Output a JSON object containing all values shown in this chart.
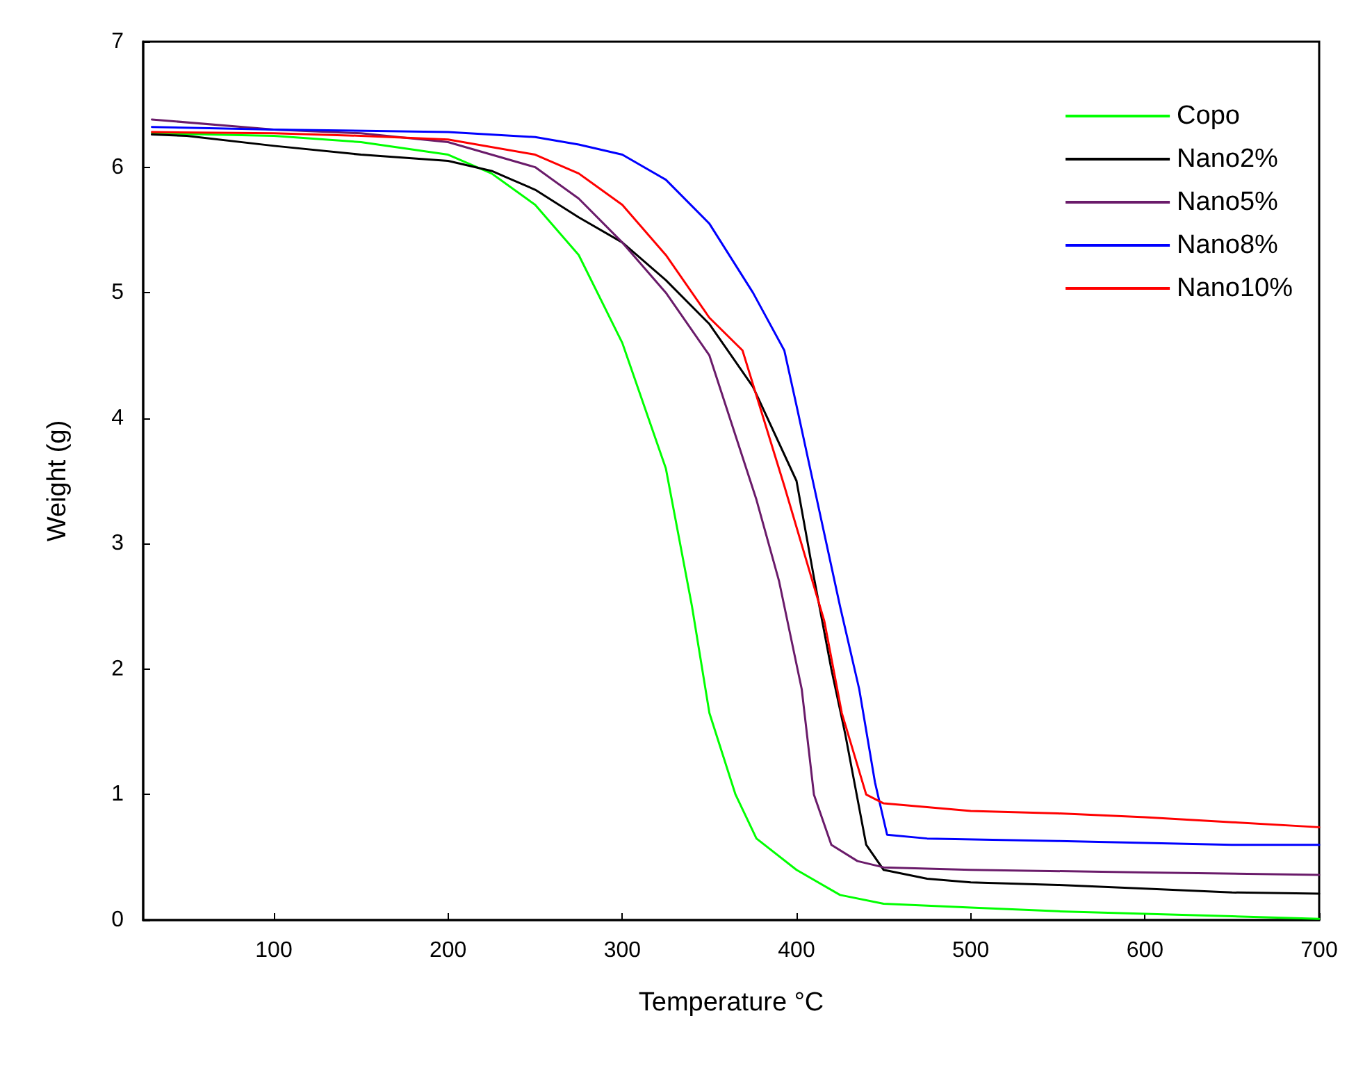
{
  "chart_data": {
    "type": "line",
    "xlabel": "Temperature °C",
    "ylabel": "Weight (g)",
    "xlim": [
      25,
      700
    ],
    "xticks": [
      100,
      200,
      300,
      400,
      500,
      600,
      700
    ],
    "ylim": [
      0,
      7
    ],
    "yticks": [
      0,
      1,
      2,
      3,
      4,
      5,
      6,
      7
    ],
    "grid": false,
    "legend": "top right",
    "marker": "none",
    "line_style": "solid",
    "series": [
      {
        "name": "Copo",
        "color": "#00ff00",
        "x": [
          30,
          100,
          150,
          200,
          225,
          250,
          275,
          300,
          325,
          340,
          350,
          365,
          377,
          400,
          425,
          450,
          500,
          550,
          600,
          650,
          700
        ],
        "values": [
          6.27,
          6.25,
          6.2,
          6.1,
          5.95,
          5.7,
          5.3,
          4.6,
          3.6,
          2.5,
          1.65,
          1.0,
          0.65,
          0.4,
          0.2,
          0.13,
          0.1,
          0.07,
          0.05,
          0.03,
          0.01
        ]
      },
      {
        "name": "Nano2%",
        "color": "#000000",
        "x": [
          30,
          50,
          100,
          150,
          200,
          225,
          250,
          275,
          300,
          325,
          350,
          375,
          400,
          410,
          420,
          428,
          440,
          450,
          475,
          500,
          550,
          600,
          650,
          700
        ],
        "values": [
          6.26,
          6.25,
          6.17,
          6.1,
          6.05,
          5.97,
          5.82,
          5.6,
          5.4,
          5.1,
          4.75,
          4.25,
          3.5,
          2.73,
          2.0,
          1.48,
          0.6,
          0.4,
          0.33,
          0.3,
          0.28,
          0.25,
          0.22,
          0.21
        ]
      },
      {
        "name": "Nano5%",
        "color": "#6a1b6a",
        "x": [
          30,
          100,
          150,
          200,
          250,
          275,
          300,
          325,
          350,
          377,
          390,
          403,
          410,
          420,
          435,
          450,
          500,
          600,
          700
        ],
        "values": [
          6.38,
          6.3,
          6.27,
          6.2,
          6.0,
          5.75,
          5.4,
          5.0,
          4.5,
          3.35,
          2.7,
          1.84,
          1.0,
          0.6,
          0.47,
          0.42,
          0.4,
          0.38,
          0.36
        ]
      },
      {
        "name": "Nano8%",
        "color": "#0000ff",
        "x": [
          30,
          100,
          200,
          250,
          275,
          300,
          325,
          350,
          375,
          393,
          400,
          410,
          425,
          436,
          445,
          452,
          475,
          550,
          650,
          700
        ],
        "values": [
          6.32,
          6.3,
          6.28,
          6.24,
          6.18,
          6.1,
          5.9,
          5.55,
          5.0,
          4.54,
          4.1,
          3.46,
          2.5,
          1.84,
          1.1,
          0.68,
          0.65,
          0.63,
          0.6,
          0.6
        ]
      },
      {
        "name": "Nano10%",
        "color": "#ff0000",
        "x": [
          30,
          100,
          150,
          200,
          250,
          275,
          300,
          325,
          350,
          369,
          393,
          416,
          426,
          440,
          450,
          500,
          550,
          600,
          650,
          700
        ],
        "values": [
          6.28,
          6.27,
          6.25,
          6.22,
          6.1,
          5.95,
          5.7,
          5.3,
          4.8,
          4.54,
          3.46,
          2.38,
          1.65,
          1.0,
          0.93,
          0.87,
          0.85,
          0.82,
          0.78,
          0.74
        ]
      }
    ]
  }
}
